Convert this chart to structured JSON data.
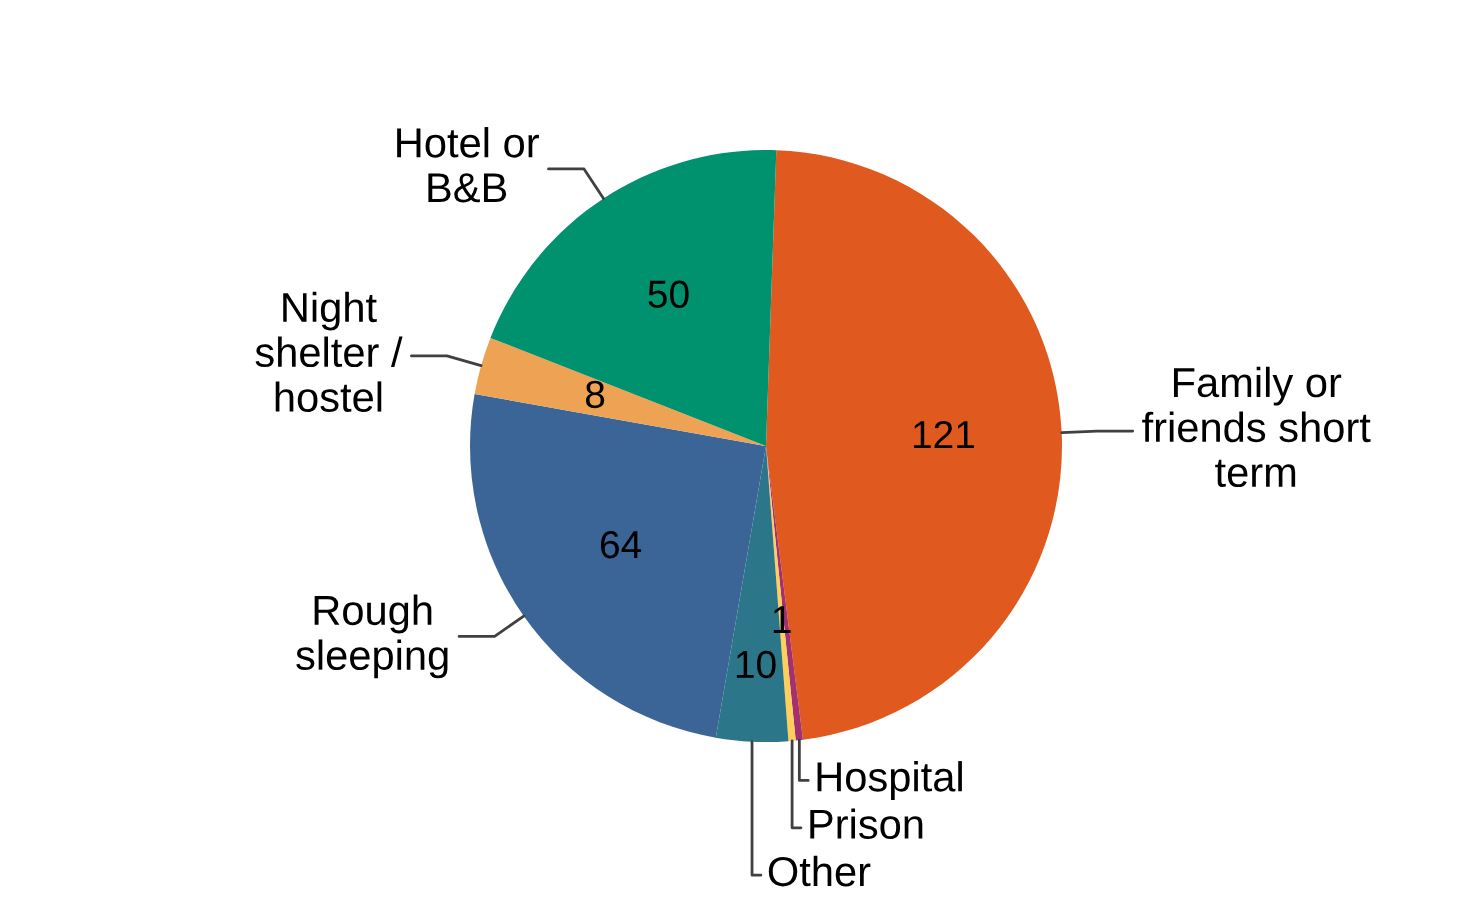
{
  "chart_data": {
    "type": "pie",
    "categories": [
      "Family or\nfriends short\nterm",
      "Hospital",
      "Prison",
      "Other",
      "Rough\nsleeping",
      "Night\nshelter /\nhostel",
      "Hotel or\nB&B"
    ],
    "values": [
      121,
      1,
      1,
      10,
      64,
      8,
      50
    ],
    "colors": [
      "#e05a1f",
      "#a3316e",
      "#ffcf5a",
      "#2b7689",
      "#3b6597",
      "#eea254",
      "#00916e"
    ],
    "value_labels": [
      "121",
      null,
      "1",
      "10",
      "64",
      "8",
      "50"
    ]
  }
}
